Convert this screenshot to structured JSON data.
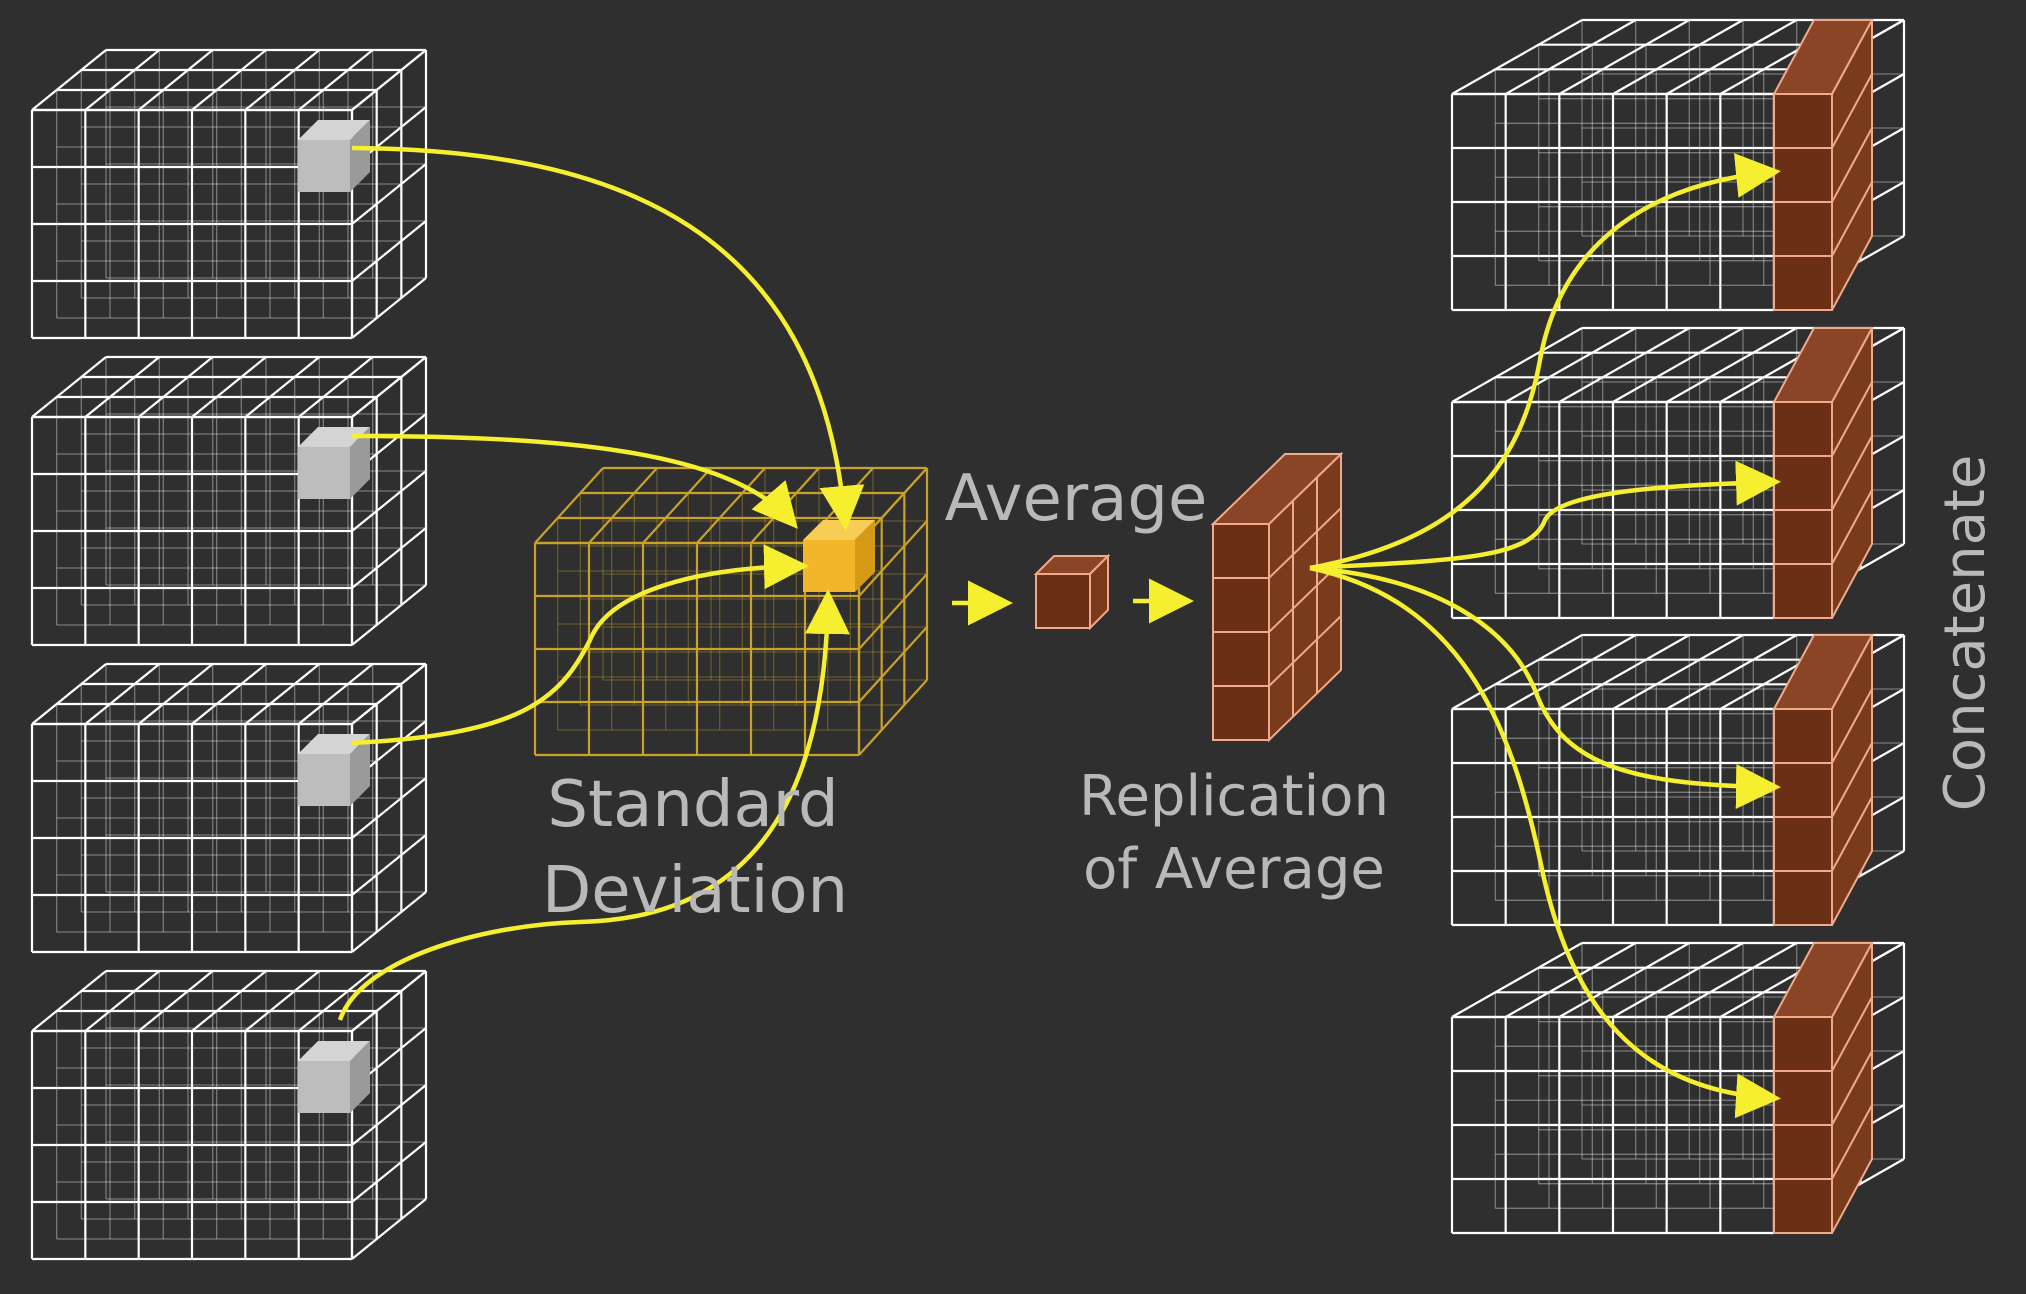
{
  "colors": {
    "background": "#2f2f2f",
    "grid_line": "#ffffff",
    "highlight_cell": "#bdbdbd",
    "std_grid": "#c9a227",
    "std_cell": "#f3b62b",
    "avg_fill": "#6b2f16",
    "avg_stroke": "#f0a98a",
    "arrow": "#f5ef2f",
    "label": "#b9b9b9"
  },
  "labels": {
    "standard_deviation_line1": "Standard",
    "standard_deviation_line2": "Deviation",
    "average": "Average",
    "replication_line1": "Replication",
    "replication_line2": "of Average",
    "concatenate": "Concatenate"
  },
  "tensor_grid": {
    "cols": 6,
    "rows": 4,
    "depth": 3
  },
  "input_tensors": [
    {
      "name": "input-tensor-1"
    },
    {
      "name": "input-tensor-2"
    },
    {
      "name": "input-tensor-3"
    },
    {
      "name": "input-tensor-4"
    }
  ],
  "output_tensors": [
    {
      "name": "output-tensor-1"
    },
    {
      "name": "output-tensor-2"
    },
    {
      "name": "output-tensor-3"
    },
    {
      "name": "output-tensor-4"
    }
  ]
}
